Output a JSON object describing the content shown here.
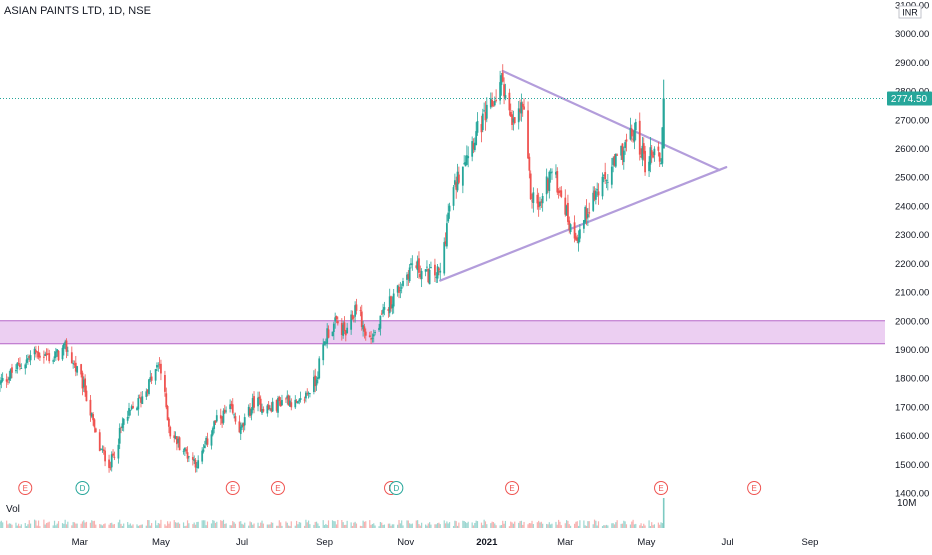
{
  "chart_data": {
    "type": "candlestick",
    "title": "ASIAN PAINTS LTD, 1D, NSE",
    "currency": "INR",
    "price_axis": {
      "min": 1400,
      "max": 3100,
      "ticks": [
        "3100.00",
        "3000.00",
        "2900.00",
        "2800.00",
        "2700.00",
        "2600.00",
        "2500.00",
        "2400.00",
        "2300.00",
        "2200.00",
        "2100.00",
        "2000.00",
        "1900.00",
        "1800.00",
        "1700.00",
        "1600.00",
        "1500.00",
        "1400.00"
      ]
    },
    "last_price": {
      "value": 2774.5,
      "label": "2774.50",
      "color": "#26a69a"
    },
    "time_axis": {
      "labels": [
        "Mar",
        "May",
        "Jul",
        "Sep",
        "Nov",
        "2021",
        "Mar",
        "May",
        "Jul",
        "Sep"
      ]
    },
    "volume": {
      "label": "Vol",
      "scale_label": "10M",
      "max": 10
    },
    "support_zone": {
      "low": 1920,
      "high": 2000,
      "fill": "#e9c7f0",
      "border": "#b566c8"
    },
    "trendlines": {
      "color": "#b39ddb",
      "upper": {
        "from": {
          "date": "2021-01-13",
          "price": 2870
        },
        "to": {
          "date": "2021-06-25",
          "price": 2525
        }
      },
      "lower": {
        "from": {
          "date": "2020-11-27",
          "price": 2140
        },
        "to": {
          "date": "2021-06-30",
          "price": 2535
        }
      }
    },
    "event_markers": [
      {
        "letter": "E",
        "date": "2020-01-20",
        "color": "#ef5350"
      },
      {
        "letter": "D",
        "date": "2020-03-03",
        "color": "#26a69a"
      },
      {
        "letter": "E",
        "date": "2020-06-24",
        "color": "#ef5350"
      },
      {
        "letter": "E",
        "date": "2020-07-28",
        "color": "#ef5350"
      },
      {
        "letter": "E",
        "date": "2020-10-21",
        "color": "#ef5350"
      },
      {
        "letter": "D",
        "date": "2020-10-25",
        "color": "#26a69a"
      },
      {
        "letter": "E",
        "date": "2021-01-20",
        "color": "#ef5350"
      },
      {
        "letter": "E",
        "date": "2021-05-12",
        "color": "#ef5350"
      },
      {
        "letter": "E",
        "date": "2021-07-21",
        "color": "#ef5350"
      }
    ],
    "colors": {
      "up": "#26a69a",
      "down": "#ef5350"
    },
    "price_path": [
      [
        "2020-01-01",
        1780
      ],
      [
        "2020-01-15",
        1840
      ],
      [
        "2020-01-28",
        1890
      ],
      [
        "2020-02-10",
        1870
      ],
      [
        "2020-02-20",
        1905
      ],
      [
        "2020-03-05",
        1760
      ],
      [
        "2020-03-15",
        1560
      ],
      [
        "2020-03-24",
        1500
      ],
      [
        "2020-04-03",
        1650
      ],
      [
        "2020-04-15",
        1720
      ],
      [
        "2020-04-30",
        1850
      ],
      [
        "2020-05-08",
        1610
      ],
      [
        "2020-05-20",
        1540
      ],
      [
        "2020-05-29",
        1500
      ],
      [
        "2020-06-10",
        1640
      ],
      [
        "2020-06-22",
        1690
      ],
      [
        "2020-06-30",
        1615
      ],
      [
        "2020-07-10",
        1720
      ],
      [
        "2020-07-22",
        1690
      ],
      [
        "2020-08-03",
        1735
      ],
      [
        "2020-08-12",
        1700
      ],
      [
        "2020-08-25",
        1790
      ],
      [
        "2020-09-03",
        1960
      ],
      [
        "2020-09-10",
        1990
      ],
      [
        "2020-09-18",
        1950
      ],
      [
        "2020-09-25",
        2060
      ],
      [
        "2020-10-03",
        1930
      ],
      [
        "2020-10-10",
        1960
      ],
      [
        "2020-10-18",
        2050
      ],
      [
        "2020-10-28",
        2120
      ],
      [
        "2020-11-06",
        2200
      ],
      [
        "2020-11-16",
        2160
      ],
      [
        "2020-11-27",
        2165
      ],
      [
        "2020-12-04",
        2400
      ],
      [
        "2020-12-14",
        2560
      ],
      [
        "2020-12-25",
        2660
      ],
      [
        "2021-01-04",
        2740
      ],
      [
        "2021-01-13",
        2840
      ],
      [
        "2021-01-20",
        2670
      ],
      [
        "2021-01-28",
        2750
      ],
      [
        "2021-02-03",
        2440
      ],
      [
        "2021-02-10",
        2400
      ],
      [
        "2021-02-18",
        2520
      ],
      [
        "2021-02-26",
        2450
      ],
      [
        "2021-03-05",
        2320
      ],
      [
        "2021-03-11",
        2300
      ],
      [
        "2021-03-20",
        2420
      ],
      [
        "2021-03-29",
        2470
      ],
      [
        "2021-04-08",
        2550
      ],
      [
        "2021-04-16",
        2620
      ],
      [
        "2021-04-23",
        2660
      ],
      [
        "2021-04-30",
        2550
      ],
      [
        "2021-05-07",
        2600
      ],
      [
        "2021-05-12",
        2560
      ],
      [
        "2021-05-14",
        2774.5
      ]
    ]
  }
}
